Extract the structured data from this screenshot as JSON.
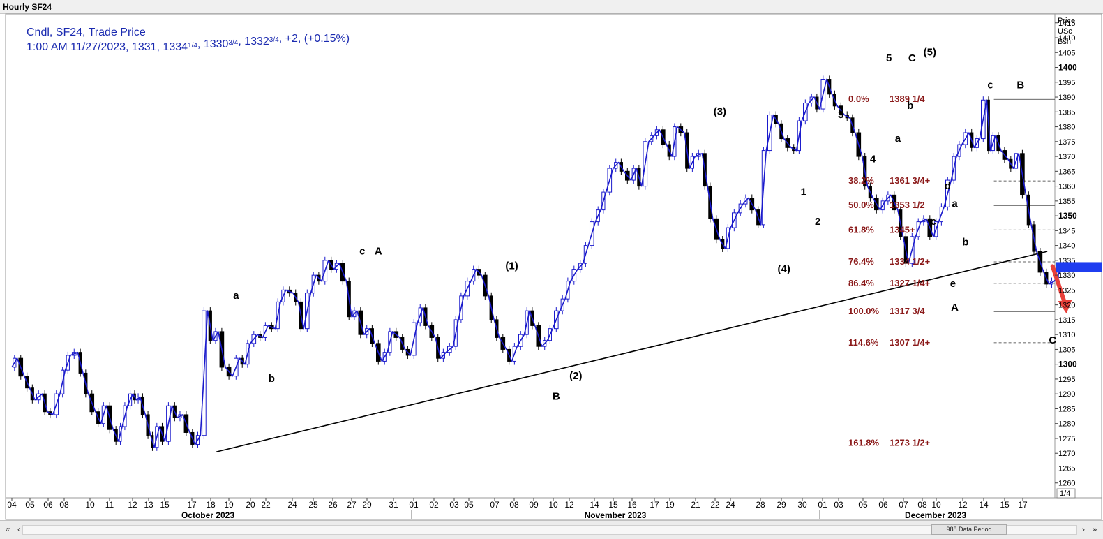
{
  "window": {
    "title": "Hourly SF24"
  },
  "legend": {
    "line1": "Cndl, SF24, Trade Price",
    "line2_a": "1:00 AM 11/27/2023, 1331, 1334",
    "frac1": "1/4",
    "line2_b": ", 1330",
    "frac2": "3/4",
    "line2_c": ", 1332",
    "frac3": "3/4",
    "line2_d": ", +2, (+0.15%)"
  },
  "axis": {
    "header": [
      "Price",
      "USc",
      "Bsh"
    ],
    "y_min": 1255,
    "y_max": 1418,
    "ticks": [
      1260,
      1265,
      1270,
      1275,
      1280,
      1285,
      1290,
      1295,
      1300,
      1305,
      1310,
      1315,
      1320,
      1325,
      1330,
      1335,
      1340,
      1345,
      1350,
      1355,
      1360,
      1365,
      1370,
      1375,
      1380,
      1385,
      1390,
      1395,
      1400,
      1405,
      1410,
      1415
    ],
    "major_ticks": [
      1300,
      1350,
      1400
    ],
    "current_value": 1332.75,
    "scale_label": "1/4"
  },
  "x_axis": {
    "days": [
      "04",
      "05",
      "06",
      "08",
      "10",
      "11",
      "12",
      "13",
      "15",
      "17",
      "18",
      "19",
      "20",
      "22",
      "24",
      "25",
      "26",
      "27",
      "29",
      "31",
      "01",
      "02",
      "03",
      "05",
      "07",
      "08",
      "09",
      "10",
      "12",
      "14",
      "15",
      "16",
      "17",
      "19",
      "21",
      "22",
      "24",
      "28",
      "29",
      "30",
      "01",
      "03",
      "05",
      "06",
      "07",
      "08",
      "10",
      "12",
      "14",
      "15",
      "17"
    ],
    "months": [
      "October 2023",
      "November 2023",
      "December 2023"
    ]
  },
  "fib_levels": [
    {
      "pct": "0.0%",
      "price": "1389 1/4",
      "value": 1389.25,
      "style": "solid"
    },
    {
      "pct": "38.2%",
      "price": "1361 3/4+",
      "value": 1361.75,
      "style": "dashed"
    },
    {
      "pct": "50.0%",
      "price": "1353 1/2",
      "value": 1353.5,
      "style": "solid"
    },
    {
      "pct": "61.8%",
      "price": "1345+",
      "value": 1345.25,
      "style": "dashed"
    },
    {
      "pct": "76.4%",
      "price": "1334 1/2+",
      "value": 1334.5,
      "style": "dashed"
    },
    {
      "pct": "86.4%",
      "price": "1327 1/4+",
      "value": 1327.25,
      "style": "dashed"
    },
    {
      "pct": "100.0%",
      "price": "1317 3/4",
      "value": 1317.75,
      "style": "solid"
    },
    {
      "pct": "114.6%",
      "price": "1307 1/4+",
      "value": 1307.25,
      "style": "dashed"
    },
    {
      "pct": "161.8%",
      "price": "1273 1/2+",
      "value": 1273.5,
      "style": "dashed"
    }
  ],
  "wave_labels": [
    {
      "text": "a",
      "x": 12.6,
      "y": 1322
    },
    {
      "text": "b",
      "x": 14.6,
      "y": 1294
    },
    {
      "text": "c",
      "x": 19.7,
      "y": 1337
    },
    {
      "text": "A",
      "x": 20.6,
      "y": 1337
    },
    {
      "text": "(1)",
      "x": 28.1,
      "y": 1332
    },
    {
      "text": "(2)",
      "x": 31.7,
      "y": 1295
    },
    {
      "text": "B",
      "x": 30.6,
      "y": 1288
    },
    {
      "text": "(3)",
      "x": 39.8,
      "y": 1384
    },
    {
      "text": "(4)",
      "x": 43.4,
      "y": 1331
    },
    {
      "text": "1",
      "x": 44.5,
      "y": 1357
    },
    {
      "text": "2",
      "x": 45.3,
      "y": 1347
    },
    {
      "text": "3",
      "x": 46.6,
      "y": 1383
    },
    {
      "text": "4",
      "x": 48.4,
      "y": 1368
    },
    {
      "text": "5",
      "x": 49.3,
      "y": 1402
    },
    {
      "text": "C",
      "x": 50.6,
      "y": 1402
    },
    {
      "text": "(5)",
      "x": 51.6,
      "y": 1404
    },
    {
      "text": "b",
      "x": 50.5,
      "y": 1386
    },
    {
      "text": "a",
      "x": 49.8,
      "y": 1375
    },
    {
      "text": "d",
      "x": 52.6,
      "y": 1359
    },
    {
      "text": "a",
      "x": 53.0,
      "y": 1353
    },
    {
      "text": "c",
      "x": 51.8,
      "y": 1347
    },
    {
      "text": "b",
      "x": 53.6,
      "y": 1340
    },
    {
      "text": "e",
      "x": 52.9,
      "y": 1326
    },
    {
      "text": "A",
      "x": 53.0,
      "y": 1318
    },
    {
      "text": "c",
      "x": 55.0,
      "y": 1393
    },
    {
      "text": "B",
      "x": 56.7,
      "y": 1393
    },
    {
      "text": "C",
      "x": 58.5,
      "y": 1307
    }
  ],
  "trendline": {
    "start": {
      "x": 11.5,
      "y": 1270.5
    },
    "end": {
      "x": 58.2,
      "y": 1338
    }
  },
  "arrow": {
    "start": {
      "x": 58.5,
      "y": 1333
    },
    "end": {
      "x": 59.2,
      "y": 1318
    },
    "color": "#e8403a"
  },
  "colors": {
    "price_up": "#1a1acc",
    "price_down": "#000000",
    "fib_text": "#8b1a1a",
    "legend_text": "#1a2ab0",
    "current_marker": "#1f3df0"
  },
  "status": {
    "period_text": "988 Data Period"
  },
  "chart_data": {
    "type": "line",
    "title": "Hourly SF24",
    "xlabel": "",
    "ylabel": "Price USc Bsh",
    "ylim": [
      1255,
      1418
    ],
    "x_unit": "trading-day index (0 = Oct 04 2023)",
    "series": [
      {
        "name": "SF24",
        "x": [
          0,
          0.3,
          0.7,
          1.0,
          1.3,
          1.7,
          2.0,
          2.3,
          2.7,
          3.0,
          3.3,
          3.7,
          4.0,
          4.3,
          4.7,
          5.0,
          5.3,
          5.7,
          6.0,
          6.2,
          6.5,
          6.8,
          7.0,
          7.2,
          7.5,
          7.8,
          8.0,
          8.3,
          8.6,
          9.0,
          9.3,
          9.6,
          10.0,
          10.3,
          10.6,
          11.0,
          11.3,
          11.6,
          12.0,
          12.4,
          12.8,
          13.1,
          13.4,
          13.8,
          14.1,
          14.4,
          14.8,
          15.1,
          15.4,
          15.8,
          16.1,
          16.4,
          16.8,
          17.1,
          17.4,
          17.8,
          18.1,
          18.4,
          18.8,
          19.1,
          19.4,
          19.8,
          20.1,
          20.4,
          20.8,
          21.1,
          21.4,
          21.8,
          22.1,
          22.4,
          22.8,
          23.1,
          23.4,
          23.8,
          24.1,
          24.4,
          24.8,
          25.1,
          25.4,
          25.8,
          26.1,
          26.4,
          26.8,
          27.1,
          27.4,
          27.8,
          28.1,
          28.4,
          28.8,
          29.1,
          29.4,
          29.8,
          30.1,
          30.4,
          30.8,
          31.1,
          31.4,
          31.8,
          32.1,
          32.4,
          32.8,
          33.1,
          33.4,
          33.8,
          34.1,
          34.4,
          34.8,
          35.1,
          35.4,
          35.8,
          36.1,
          36.4,
          36.8,
          37.1,
          37.4,
          37.8,
          38.1,
          38.4,
          38.8,
          39.1,
          39.4,
          39.8,
          40.1,
          40.4,
          40.8,
          41.1,
          41.4,
          41.8,
          42.1,
          42.4,
          42.8,
          43.1,
          43.4,
          43.8,
          44.1,
          44.4,
          44.8,
          45.1,
          45.4,
          45.8,
          46.1,
          46.4,
          46.8,
          47.1,
          47.4,
          47.8,
          48.1,
          48.4,
          48.8,
          49.1,
          49.4,
          49.8,
          50.1,
          50.4,
          50.8,
          51.1,
          51.4,
          51.8,
          52.1,
          52.4,
          52.8,
          53.1,
          53.4,
          53.8,
          54.1,
          54.4,
          54.8,
          55.0,
          55.3,
          55.6,
          56.0,
          56.3,
          56.6,
          57.0,
          57.3,
          57.6,
          58.0,
          58.3,
          58.6,
          58.9
        ],
        "values": [
          1299,
          1302,
          1296,
          1292,
          1288,
          1290,
          1284,
          1283,
          1290,
          1298,
          1303,
          1304,
          1297,
          1290,
          1284,
          1280,
          1286,
          1278,
          1274,
          1279,
          1286,
          1290,
          1288,
          1289,
          1283,
          1276,
          1272,
          1279,
          1274,
          1286,
          1282,
          1283,
          1277,
          1273,
          1276,
          1318,
          1308,
          1311,
          1299,
          1296,
          1302,
          1300,
          1307,
          1310,
          1309,
          1313,
          1312,
          1321,
          1325,
          1324,
          1321,
          1312,
          1324,
          1330,
          1328,
          1335,
          1332,
          1334,
          1328,
          1316,
          1318,
          1310,
          1312,
          1307,
          1301,
          1304,
          1311,
          1309,
          1305,
          1303,
          1314,
          1319,
          1313,
          1309,
          1302,
          1304,
          1306,
          1315,
          1323,
          1328,
          1332,
          1330,
          1323,
          1315,
          1309,
          1305,
          1301,
          1306,
          1310,
          1318,
          1313,
          1306,
          1308,
          1312,
          1318,
          1322,
          1328,
          1332,
          1334,
          1340,
          1348,
          1352,
          1358,
          1366,
          1368,
          1365,
          1362,
          1366,
          1360,
          1375,
          1377,
          1379,
          1374,
          1370,
          1380,
          1378,
          1366,
          1370,
          1371,
          1360,
          1349,
          1342,
          1339,
          1346,
          1351,
          1354,
          1356,
          1352,
          1347,
          1372,
          1384,
          1381,
          1376,
          1373,
          1372,
          1382,
          1388,
          1390,
          1386,
          1396,
          1391,
          1387,
          1384,
          1383,
          1378,
          1370,
          1360,
          1356,
          1352,
          1355,
          1357,
          1352,
          1343,
          1334,
          1343,
          1348,
          1349,
          1343,
          1348,
          1353,
          1362,
          1370,
          1374,
          1378,
          1373,
          1376,
          1389,
          1372,
          1377,
          1372,
          1369,
          1366,
          1371,
          1357,
          1347,
          1338,
          1331,
          1327,
          1328,
          1331
        ]
      }
    ]
  }
}
